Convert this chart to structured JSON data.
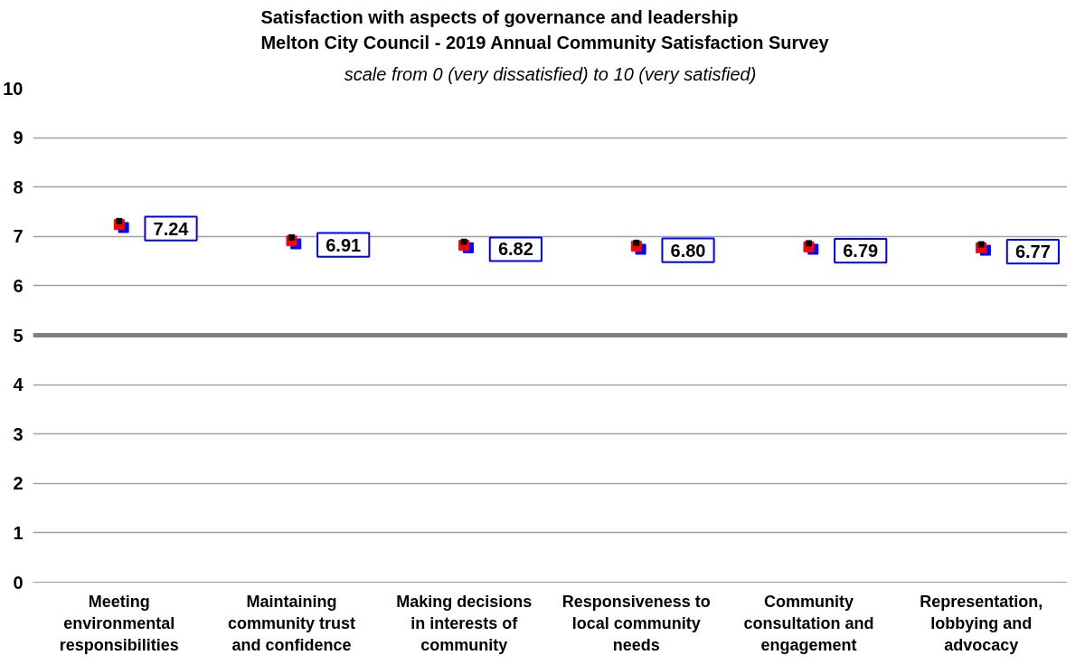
{
  "chart_data": {
    "type": "scatter",
    "title": "Satisfaction  with aspects of governance and leadership\nMelton City Council  -  2019 Annual Community Satisfaction Survey",
    "subtitle": "scale from 0 (very dissatisfied) to 10 (very satisfied)",
    "categories": [
      "Meeting environmental responsibilities",
      "Maintaining community trust and confidence",
      "Making decisions in interests of community",
      "Responsiveness to local community needs",
      "Community consultation and engagement",
      "Representation, lobbying and advocacy"
    ],
    "series": [
      {
        "color": "#0000ff",
        "marker": "square",
        "values": [
          7.18,
          6.85,
          6.77,
          6.74,
          6.74,
          6.72
        ]
      },
      {
        "color": "#ff0000",
        "marker": "square",
        "values": [
          7.24,
          6.91,
          6.82,
          6.8,
          6.79,
          6.77
        ],
        "value_labels": [
          "7.24",
          "6.91",
          "6.82",
          "6.80",
          "6.79",
          "6.77"
        ]
      },
      {
        "color": "#000000",
        "marker": "square",
        "values": [
          7.31,
          6.98,
          6.89,
          6.87,
          6.86,
          6.84
        ]
      }
    ],
    "ylim": [
      0,
      10
    ],
    "yticks": [
      0,
      1,
      2,
      3,
      4,
      5,
      6,
      7,
      8,
      9,
      10
    ],
    "grid": "y",
    "ref_lines": [
      {
        "axis": "y",
        "value": 5,
        "color": "#808080"
      }
    ]
  }
}
